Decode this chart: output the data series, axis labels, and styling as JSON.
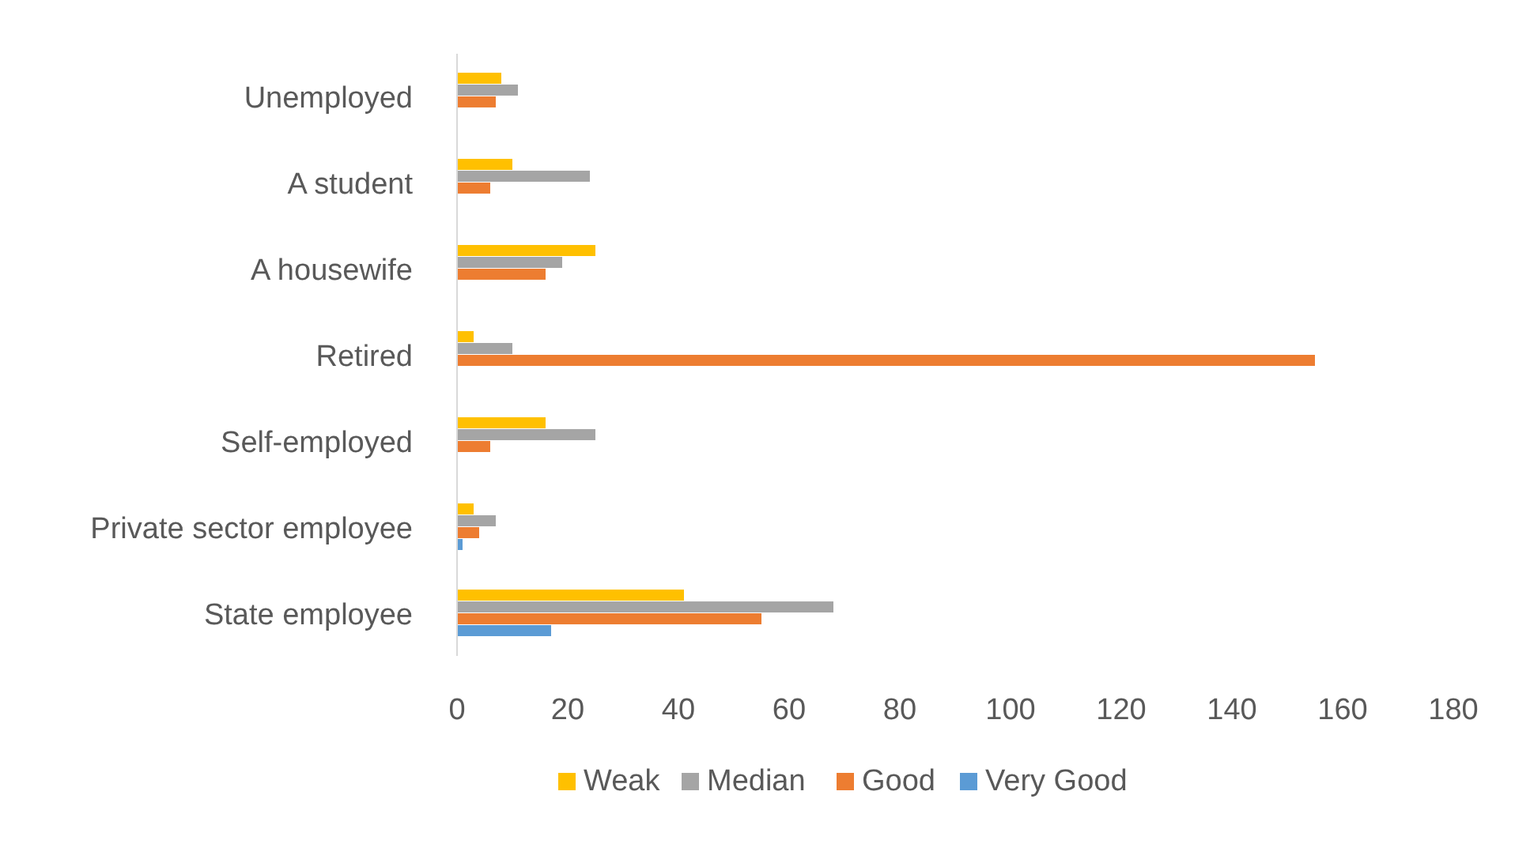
{
  "chart_data": {
    "type": "bar",
    "orientation": "horizontal",
    "categories": [
      "Unemployed",
      "A student",
      "A housewife",
      "Retired",
      "Self-employed",
      "Private sector employee",
      "State employee"
    ],
    "series": [
      {
        "name": "Weak",
        "color": "#ffc000",
        "values": [
          8,
          10,
          25,
          3,
          16,
          3,
          41
        ]
      },
      {
        "name": "Median",
        "color": "#a5a5a5",
        "values": [
          11,
          24,
          19,
          10,
          25,
          7,
          68
        ]
      },
      {
        "name": "Good",
        "color": "#ed7d31",
        "values": [
          7,
          6,
          16,
          155,
          6,
          4,
          55
        ]
      },
      {
        "name": "Very Good",
        "color": "#5b9bd5",
        "values": [
          0,
          0,
          0,
          0,
          0,
          1,
          17
        ]
      }
    ],
    "xlim": [
      0,
      180
    ],
    "xticks": [
      0,
      20,
      40,
      60,
      80,
      100,
      120,
      140,
      160,
      180
    ],
    "grid": false,
    "legend": "bottom"
  }
}
